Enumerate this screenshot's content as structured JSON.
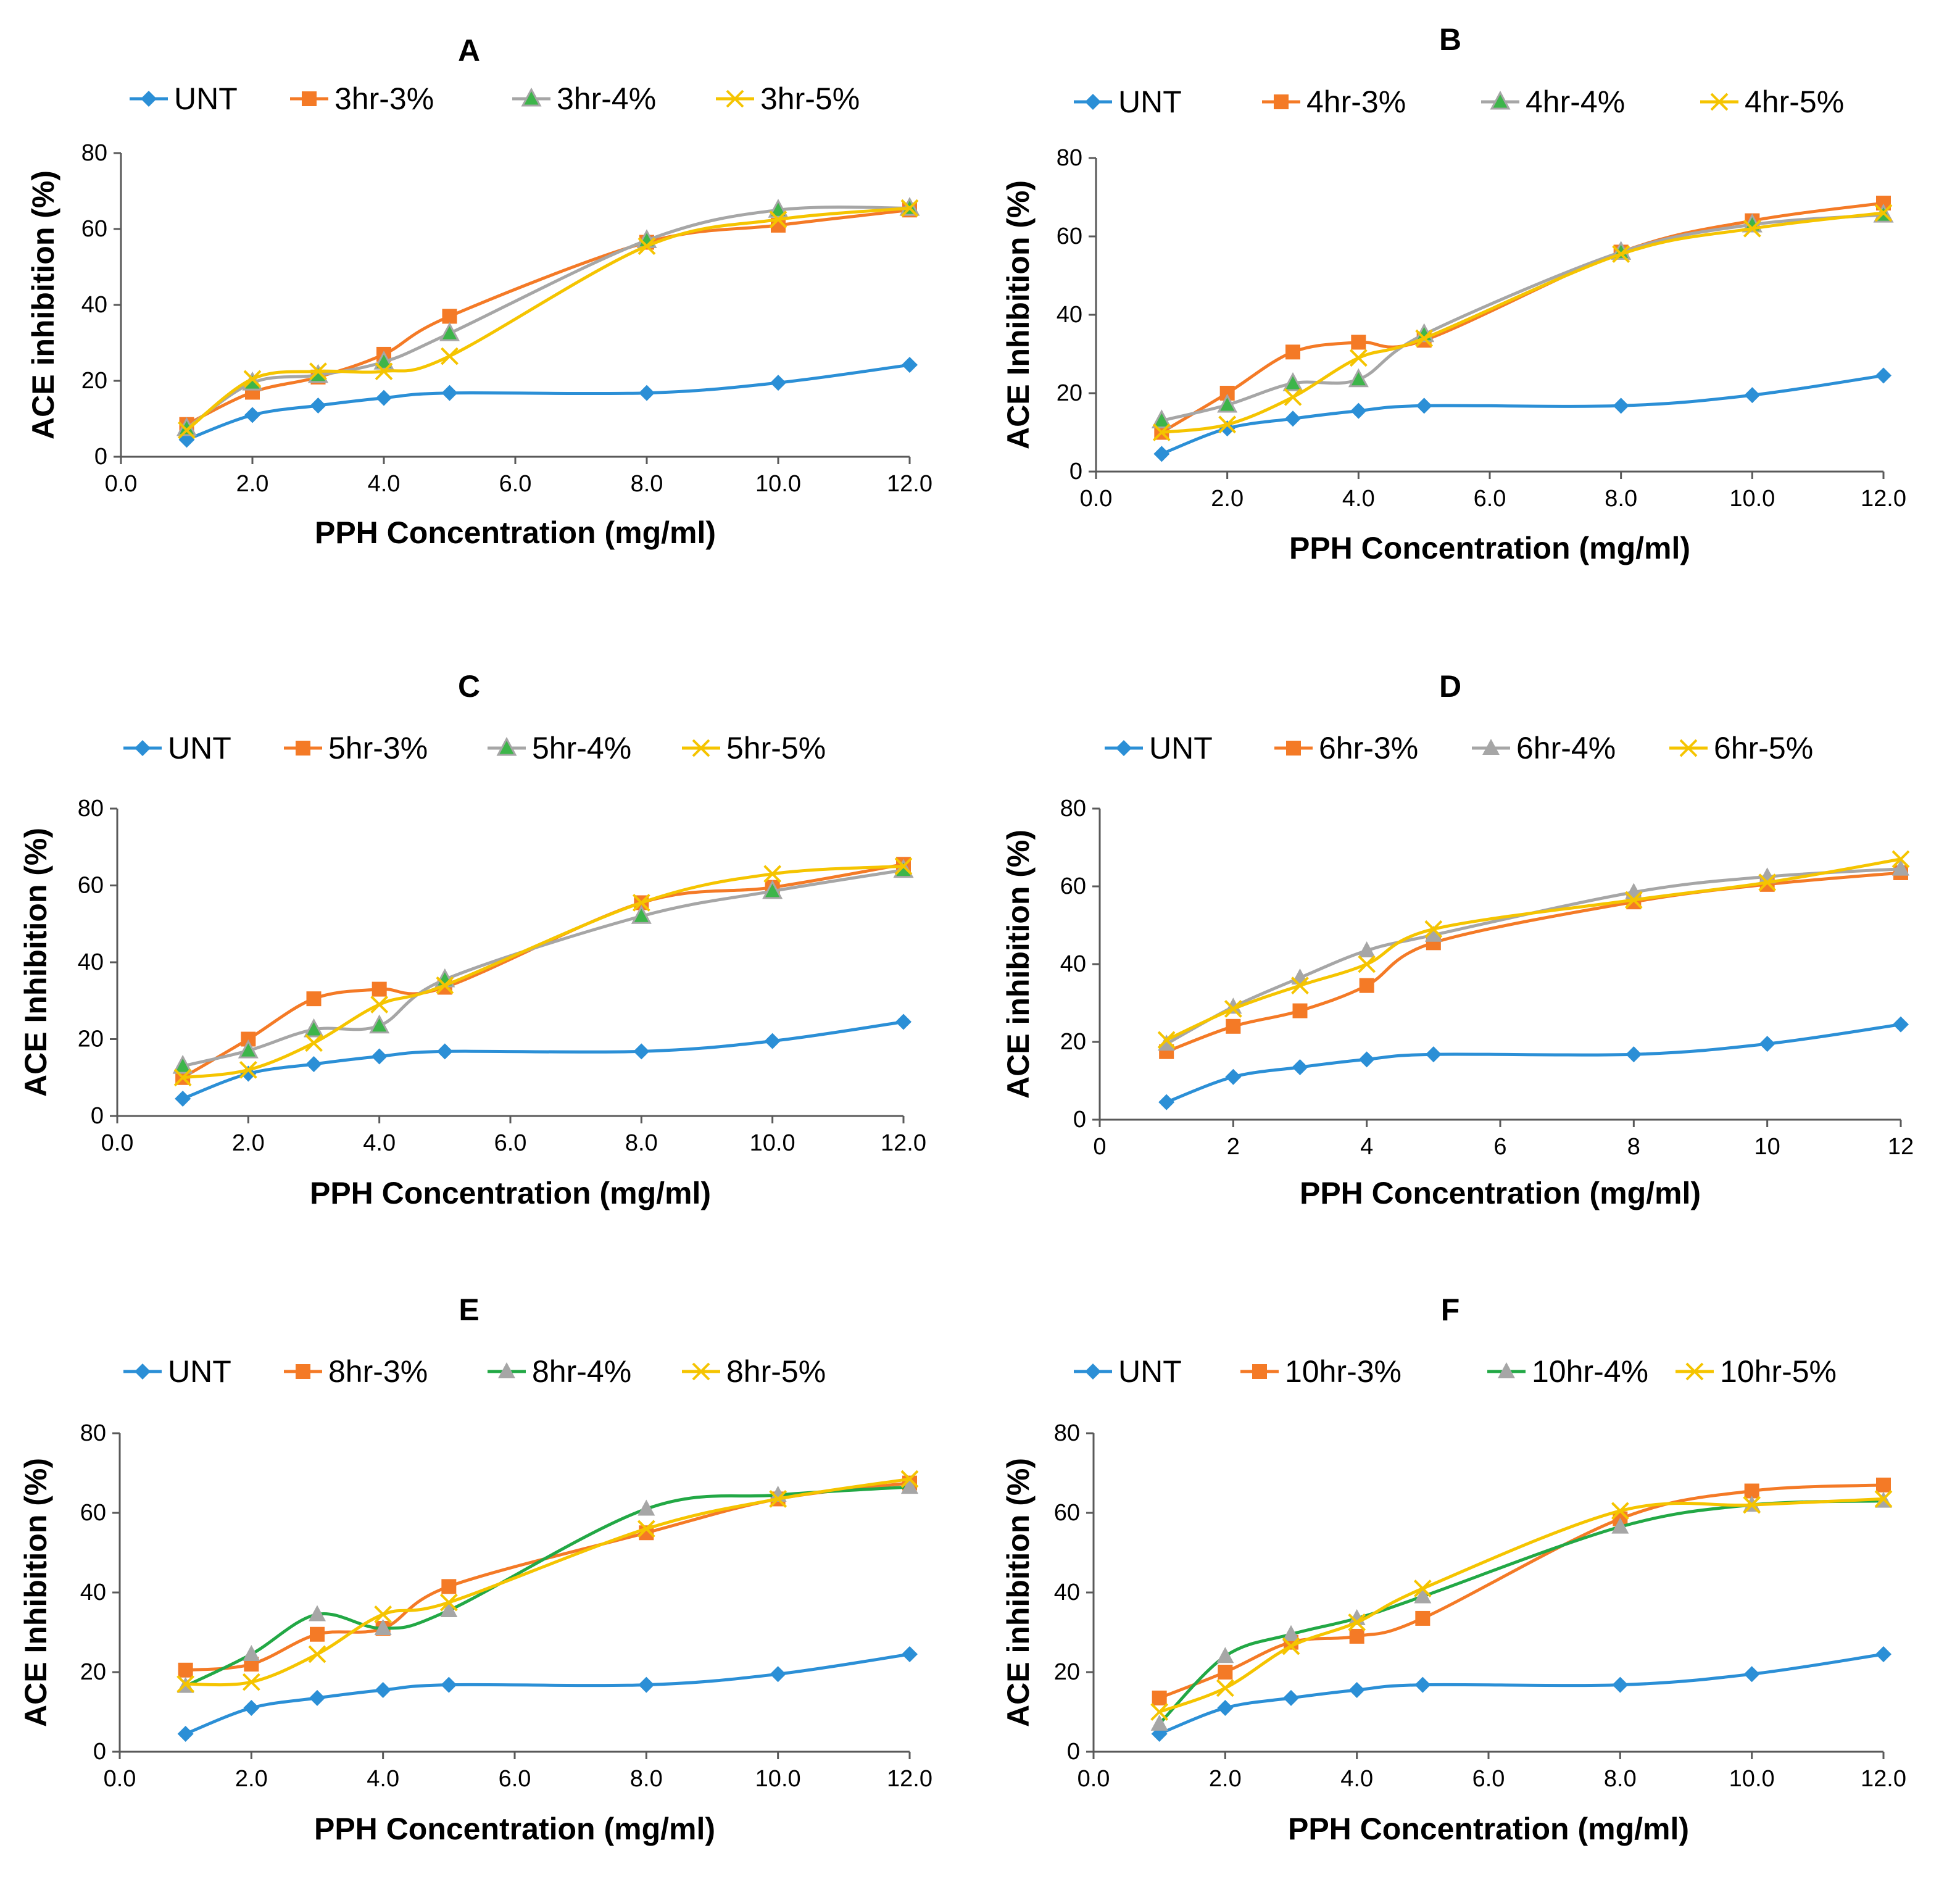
{
  "figure": {
    "colors": {
      "UNT": "#2B8FD6",
      "3pct": "#F47A26",
      "4pct_gray": "#A6A6A6",
      "4pct_green": "#22A845",
      "5pct": "#F5C400",
      "marker_green": "#3DB54A"
    }
  },
  "chart_data": [
    {
      "type": "line",
      "title": "A",
      "xlabel": "PPH Concentration (mg/ml)",
      "ylabel": "ACE inhibition (%)",
      "xlim": [
        0,
        12
      ],
      "ylim": [
        0,
        80
      ],
      "xticks": [
        "0.0",
        "2.0",
        "4.0",
        "6.0",
        "8.0",
        "10.0",
        "12.0"
      ],
      "yticks": [
        "0",
        "20",
        "40",
        "60",
        "80"
      ],
      "x": [
        1,
        2,
        3,
        4,
        5,
        8,
        10,
        12
      ],
      "series": [
        {
          "name": "UNT",
          "marker": "diamond",
          "color": "#2B8FD6",
          "values": [
            4.5,
            11,
            13.5,
            15.5,
            16.8,
            16.8,
            19.5,
            24.2
          ]
        },
        {
          "name": "3hr-3%",
          "marker": "square",
          "color": "#F47A26",
          "values": [
            8.5,
            17,
            21,
            27,
            37,
            56.5,
            61,
            65
          ]
        },
        {
          "name": "3hr-4%",
          "marker": "triangle-green",
          "color": "#A6A6A6",
          "values": [
            7.5,
            19.5,
            21.5,
            25,
            32.5,
            57,
            65,
            65.5
          ]
        },
        {
          "name": "3hr-5%",
          "marker": "x",
          "color": "#F5C400",
          "values": [
            7,
            20.5,
            22.5,
            22.5,
            26.5,
            55.5,
            62.5,
            65.5
          ]
        }
      ]
    },
    {
      "type": "line",
      "title": "B",
      "xlabel": "PPH Concentration (mg/ml)",
      "ylabel": "ACE Inhibition (%)",
      "xlim": [
        0,
        12
      ],
      "ylim": [
        0,
        80
      ],
      "xticks": [
        "0.0",
        "2.0",
        "4.0",
        "6.0",
        "8.0",
        "10.0",
        "12.0"
      ],
      "yticks": [
        "0",
        "20",
        "40",
        "60",
        "80"
      ],
      "x": [
        1,
        2,
        3,
        4,
        5,
        8,
        10,
        12
      ],
      "series": [
        {
          "name": "UNT",
          "marker": "diamond",
          "color": "#2B8FD6",
          "values": [
            4.5,
            11,
            13.5,
            15.5,
            16.8,
            16.8,
            19.5,
            24.5
          ]
        },
        {
          "name": "4hr-3%",
          "marker": "square",
          "color": "#F47A26",
          "values": [
            10,
            20,
            30.5,
            33,
            33.5,
            56,
            64,
            68.5
          ]
        },
        {
          "name": "4hr-4%",
          "marker": "triangle-green",
          "color": "#A6A6A6",
          "values": [
            13,
            17,
            22.5,
            23.5,
            35,
            56,
            63,
            65.5
          ]
        },
        {
          "name": "4hr-5%",
          "marker": "x",
          "color": "#F5C400",
          "values": [
            10,
            12,
            19,
            29,
            34,
            55.5,
            62,
            66
          ]
        }
      ]
    },
    {
      "type": "line",
      "title": "C",
      "xlabel": "PPH Concentration (mg/ml)",
      "ylabel": "ACE Inhibition (%)",
      "xlim": [
        0,
        12
      ],
      "ylim": [
        0,
        80
      ],
      "xticks": [
        "0.0",
        "2.0",
        "4.0",
        "6.0",
        "8.0",
        "10.0",
        "12.0"
      ],
      "yticks": [
        "0",
        "20",
        "40",
        "60",
        "80"
      ],
      "x": [
        1,
        2,
        3,
        4,
        5,
        8,
        10,
        12
      ],
      "series": [
        {
          "name": "UNT",
          "marker": "diamond",
          "color": "#2B8FD6",
          "values": [
            4.5,
            11,
            13.5,
            15.5,
            16.8,
            16.8,
            19.5,
            24.5
          ]
        },
        {
          "name": "5hr-3%",
          "marker": "square",
          "color": "#F47A26",
          "values": [
            10,
            20,
            30.5,
            33,
            33.5,
            55.5,
            59.5,
            65.5
          ]
        },
        {
          "name": "5hr-4%",
          "marker": "triangle-green",
          "color": "#A6A6A6",
          "values": [
            13,
            17,
            22.5,
            23.5,
            35.5,
            52,
            58.5,
            64
          ]
        },
        {
          "name": "5hr-5%",
          "marker": "x",
          "color": "#F5C400",
          "values": [
            10,
            12,
            19,
            29,
            34,
            55.5,
            63,
            65
          ]
        }
      ]
    },
    {
      "type": "line",
      "title": "D",
      "xlabel": "PPH Concentration (mg/ml)",
      "ylabel": "ACE inhibition  (%)",
      "xlim": [
        0,
        12
      ],
      "ylim": [
        0,
        80
      ],
      "xticks": [
        "0",
        "2",
        "4",
        "6",
        "8",
        "10",
        "12"
      ],
      "yticks": [
        "0",
        "20",
        "40",
        "60",
        "80"
      ],
      "x": [
        1,
        2,
        3,
        4,
        5,
        8,
        10,
        12
      ],
      "series": [
        {
          "name": "UNT",
          "marker": "diamond",
          "color": "#2B8FD6",
          "values": [
            4.5,
            11,
            13.5,
            15.5,
            16.8,
            16.8,
            19.5,
            24.5
          ]
        },
        {
          "name": "6hr-3%",
          "marker": "square",
          "color": "#F47A26",
          "values": [
            17.5,
            24,
            28,
            34.5,
            45.5,
            56,
            60.5,
            63.5
          ]
        },
        {
          "name": "6hr-4%",
          "marker": "triangle-gray",
          "color": "#A6A6A6",
          "values": [
            19.5,
            29,
            36.5,
            43.5,
            47.5,
            58.5,
            62.5,
            64.5
          ]
        },
        {
          "name": "6hr-5%",
          "marker": "x",
          "color": "#F5C400",
          "values": [
            20.5,
            28.5,
            34.5,
            40,
            49,
            56.5,
            61,
            67
          ]
        }
      ]
    },
    {
      "type": "line",
      "title": "E",
      "xlabel": "PPH Concentration (mg/ml)",
      "ylabel": "ACE Inhibition (%)",
      "xlim": [
        0,
        12
      ],
      "ylim": [
        0,
        80
      ],
      "xticks": [
        "0.0",
        "2.0",
        "4.0",
        "6.0",
        "8.0",
        "10.0",
        "12.0"
      ],
      "yticks": [
        "0",
        "20",
        "40",
        "60",
        "80"
      ],
      "x": [
        1,
        2,
        3,
        4,
        5,
        8,
        10,
        12
      ],
      "series": [
        {
          "name": "UNT",
          "marker": "diamond",
          "color": "#2B8FD6",
          "values": [
            4.5,
            11,
            13.5,
            15.5,
            16.8,
            16.8,
            19.5,
            24.5
          ]
        },
        {
          "name": "8hr-3%",
          "marker": "square",
          "color": "#F47A26",
          "values": [
            20.5,
            22,
            29.5,
            31,
            41.5,
            55,
            63.5,
            67.5
          ]
        },
        {
          "name": "8hr-4%",
          "marker": "triangle-gray",
          "color": "#22A845",
          "values": [
            16.5,
            24.5,
            34.5,
            31,
            35.5,
            61,
            64.5,
            66.5
          ]
        },
        {
          "name": "8hr-5%",
          "marker": "x",
          "color": "#F5C400",
          "values": [
            17,
            17.5,
            24.5,
            34.5,
            37.5,
            56,
            63.5,
            68.5
          ]
        }
      ]
    },
    {
      "type": "line",
      "title": "F",
      "xlabel": "PPH Concentration (mg/ml)",
      "ylabel": "ACE inhibition (%)",
      "xlim": [
        0,
        12
      ],
      "ylim": [
        0,
        80
      ],
      "xticks": [
        "0.0",
        "2.0",
        "4.0",
        "6.0",
        "8.0",
        "10.0",
        "12.0"
      ],
      "yticks": [
        "0",
        "20",
        "40",
        "60",
        "80"
      ],
      "x": [
        1,
        2,
        3,
        4,
        5,
        8,
        10,
        12
      ],
      "series": [
        {
          "name": "UNT",
          "marker": "diamond",
          "color": "#2B8FD6",
          "values": [
            4.5,
            11,
            13.5,
            15.5,
            16.8,
            16.8,
            19.5,
            24.5
          ]
        },
        {
          "name": "10hr-3%",
          "marker": "square",
          "color": "#F47A26",
          "values": [
            13.5,
            20,
            27.5,
            29,
            33.5,
            58.5,
            65.5,
            67
          ]
        },
        {
          "name": "10hr-4%",
          "marker": "triangle-gray",
          "color": "#22A845",
          "values": [
            7,
            24,
            29.5,
            33.5,
            39,
            56.5,
            62,
            63
          ]
        },
        {
          "name": "10hr-5%",
          "marker": "x",
          "color": "#F5C400",
          "values": [
            10,
            16,
            26.5,
            32.5,
            41,
            60.5,
            62,
            63.5
          ]
        }
      ]
    }
  ]
}
